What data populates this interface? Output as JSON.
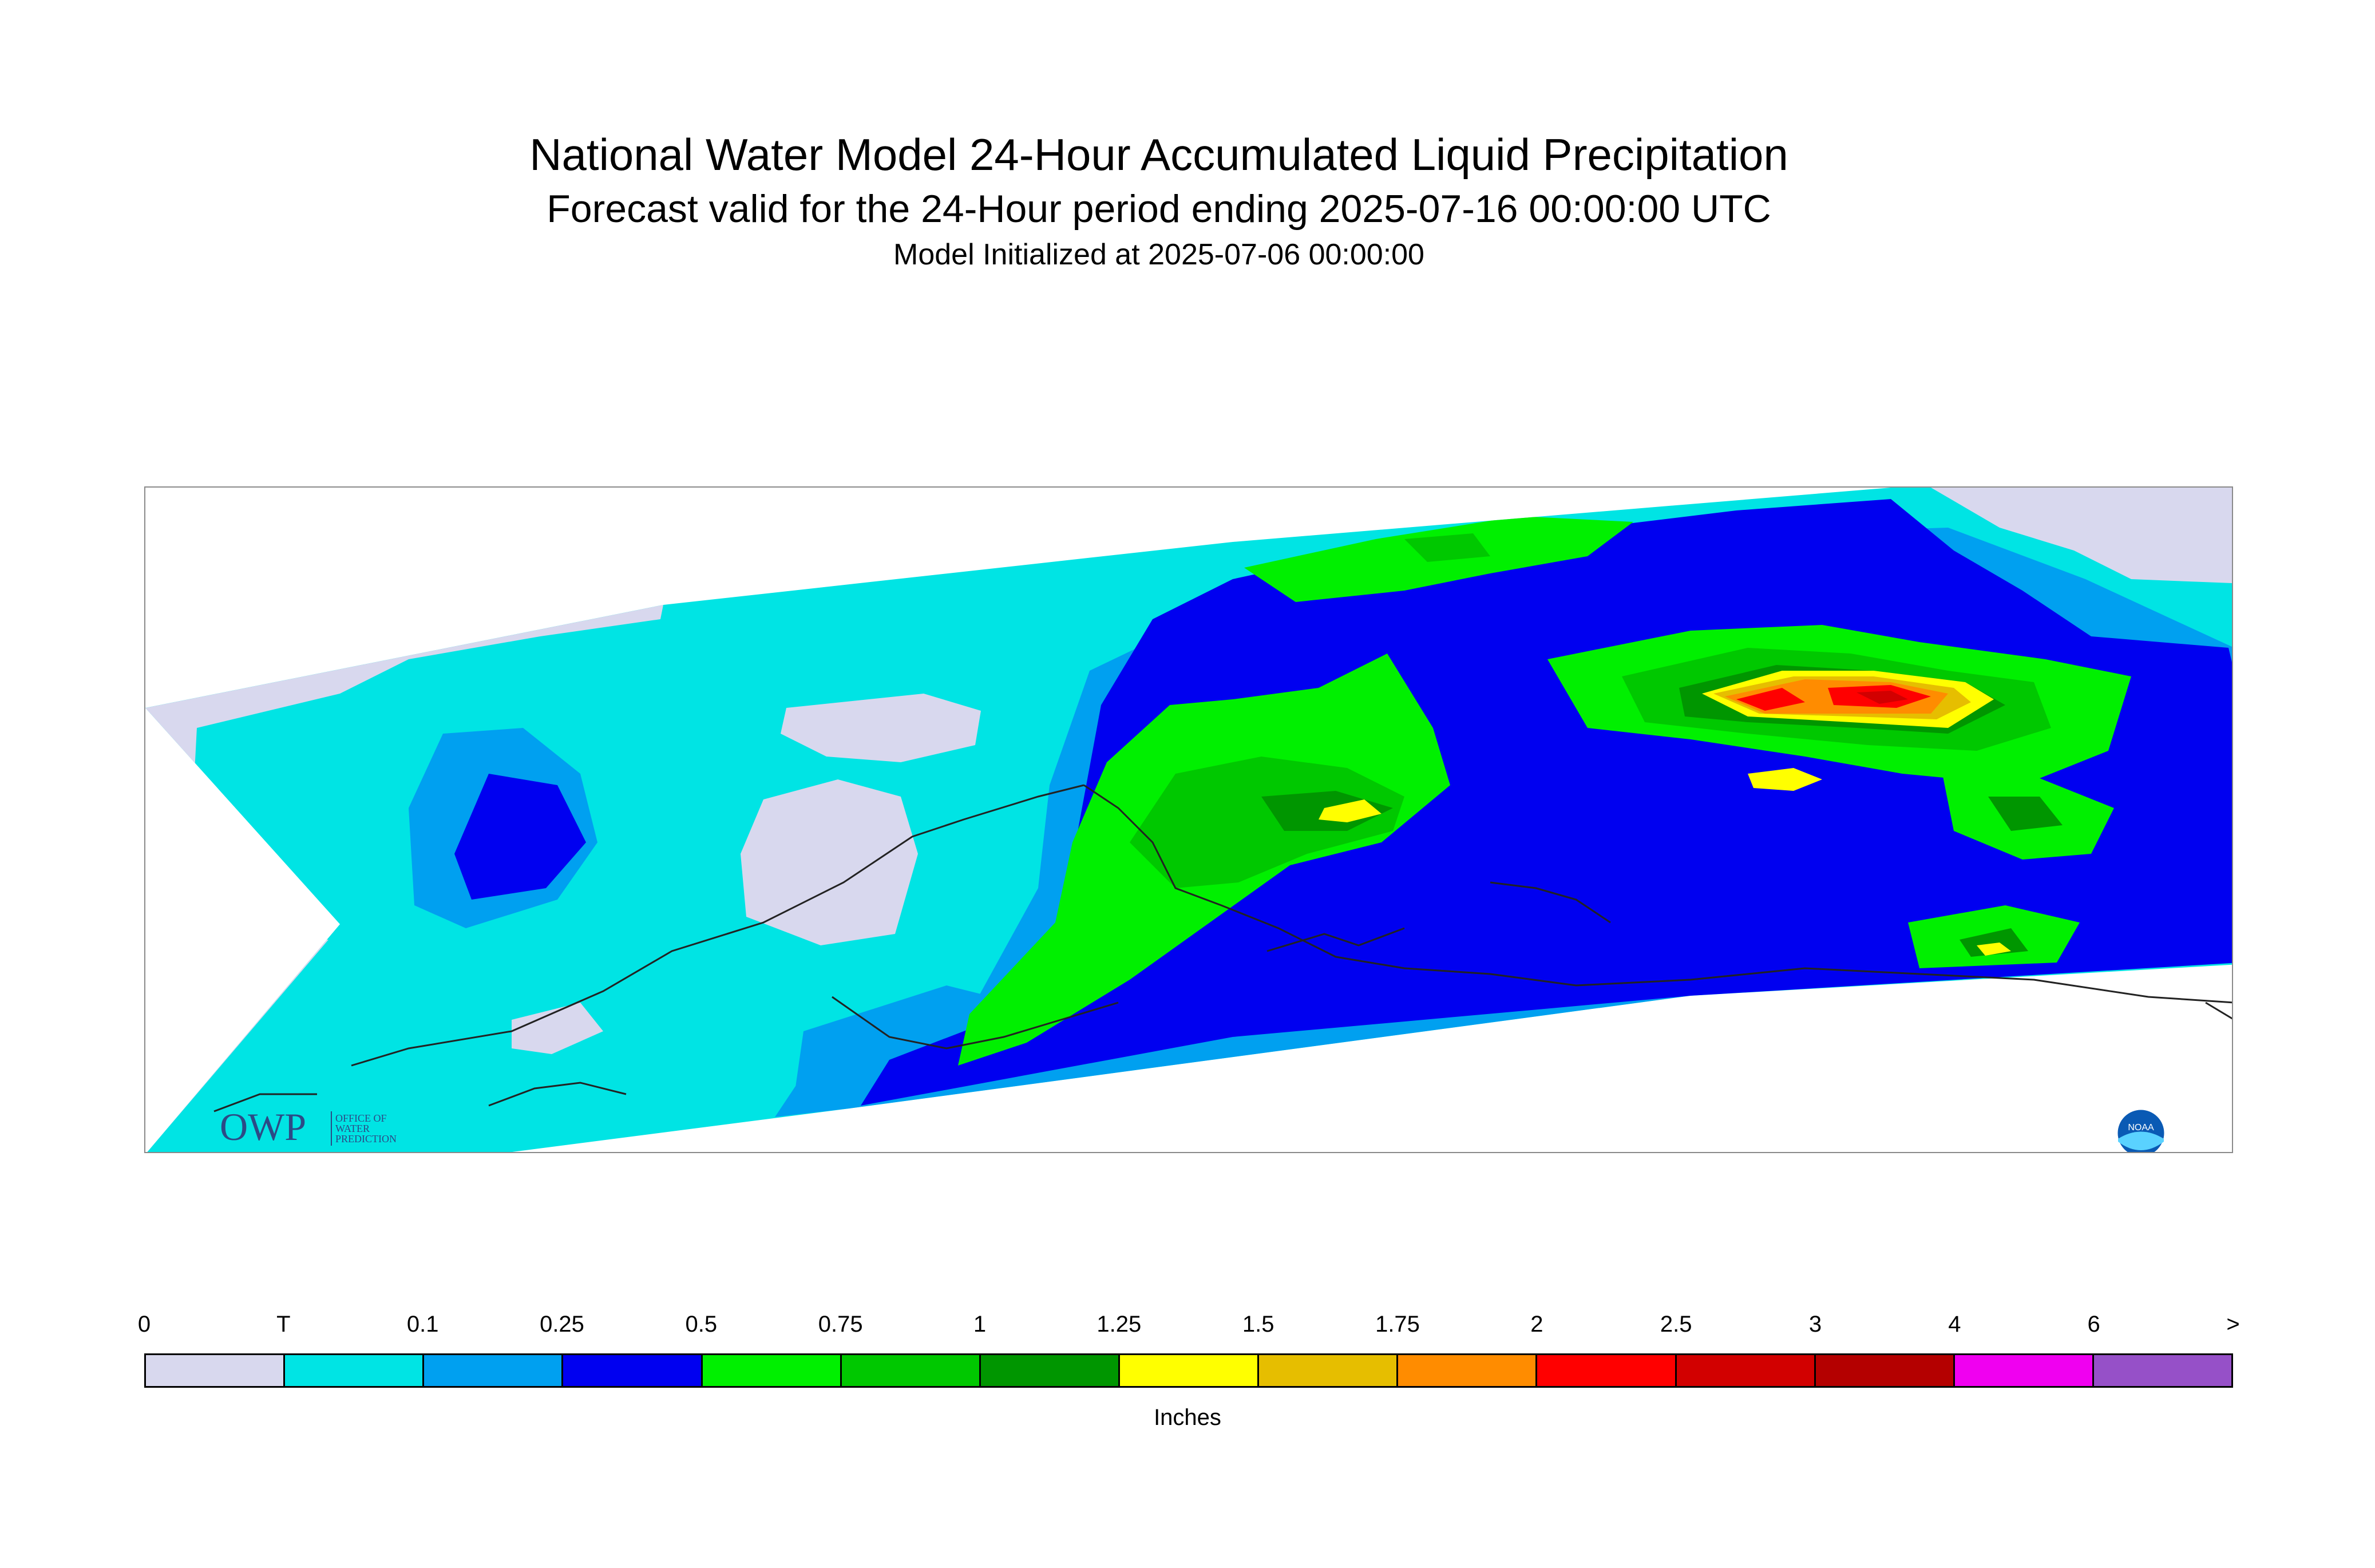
{
  "header": {
    "title": "National Water Model 24-Hour Accumulated Liquid Precipitation",
    "subtitle": "Forecast valid for the 24-Hour period ending 2025-07-16 00:00:00 UTC",
    "init": "Model Initialized at 2025-07-06 00:00:00"
  },
  "map": {
    "colors": {
      "trace_bg": "#d8d8ee",
      "t": "#00e4e4",
      "p01": "#00a0f0",
      "p025": "#0000f0",
      "p05": "#00f000",
      "p075": "#00c800",
      "p1": "#009600",
      "p125": "#ffff00",
      "p15": "#e6be00",
      "p175": "#ff8c00",
      "p2": "#ff0000",
      "p25": "#d20000",
      "p3": "#b40000",
      "coast": "#222222"
    }
  },
  "logos": {
    "owp_text": "OWP",
    "owp_line1": "OFFICE OF",
    "owp_line2": "WATER",
    "owp_line3": "PREDICTION",
    "noaa_text": "NOAA"
  },
  "legend": {
    "tick_labels": [
      "0",
      "T",
      "0.1",
      "0.25",
      "0.5",
      "0.75",
      "1",
      "1.25",
      "1.5",
      "1.75",
      "2",
      "2.5",
      "3",
      "4",
      "6",
      ">"
    ],
    "colors": [
      "#d8d8ee",
      "#00e4e4",
      "#00a0f0",
      "#0000f0",
      "#00f000",
      "#00c800",
      "#009600",
      "#ffff00",
      "#e6be00",
      "#ff8c00",
      "#ff0000",
      "#d20000",
      "#b40000",
      "#f000f0",
      "#9650c8"
    ],
    "unit": "Inches"
  }
}
